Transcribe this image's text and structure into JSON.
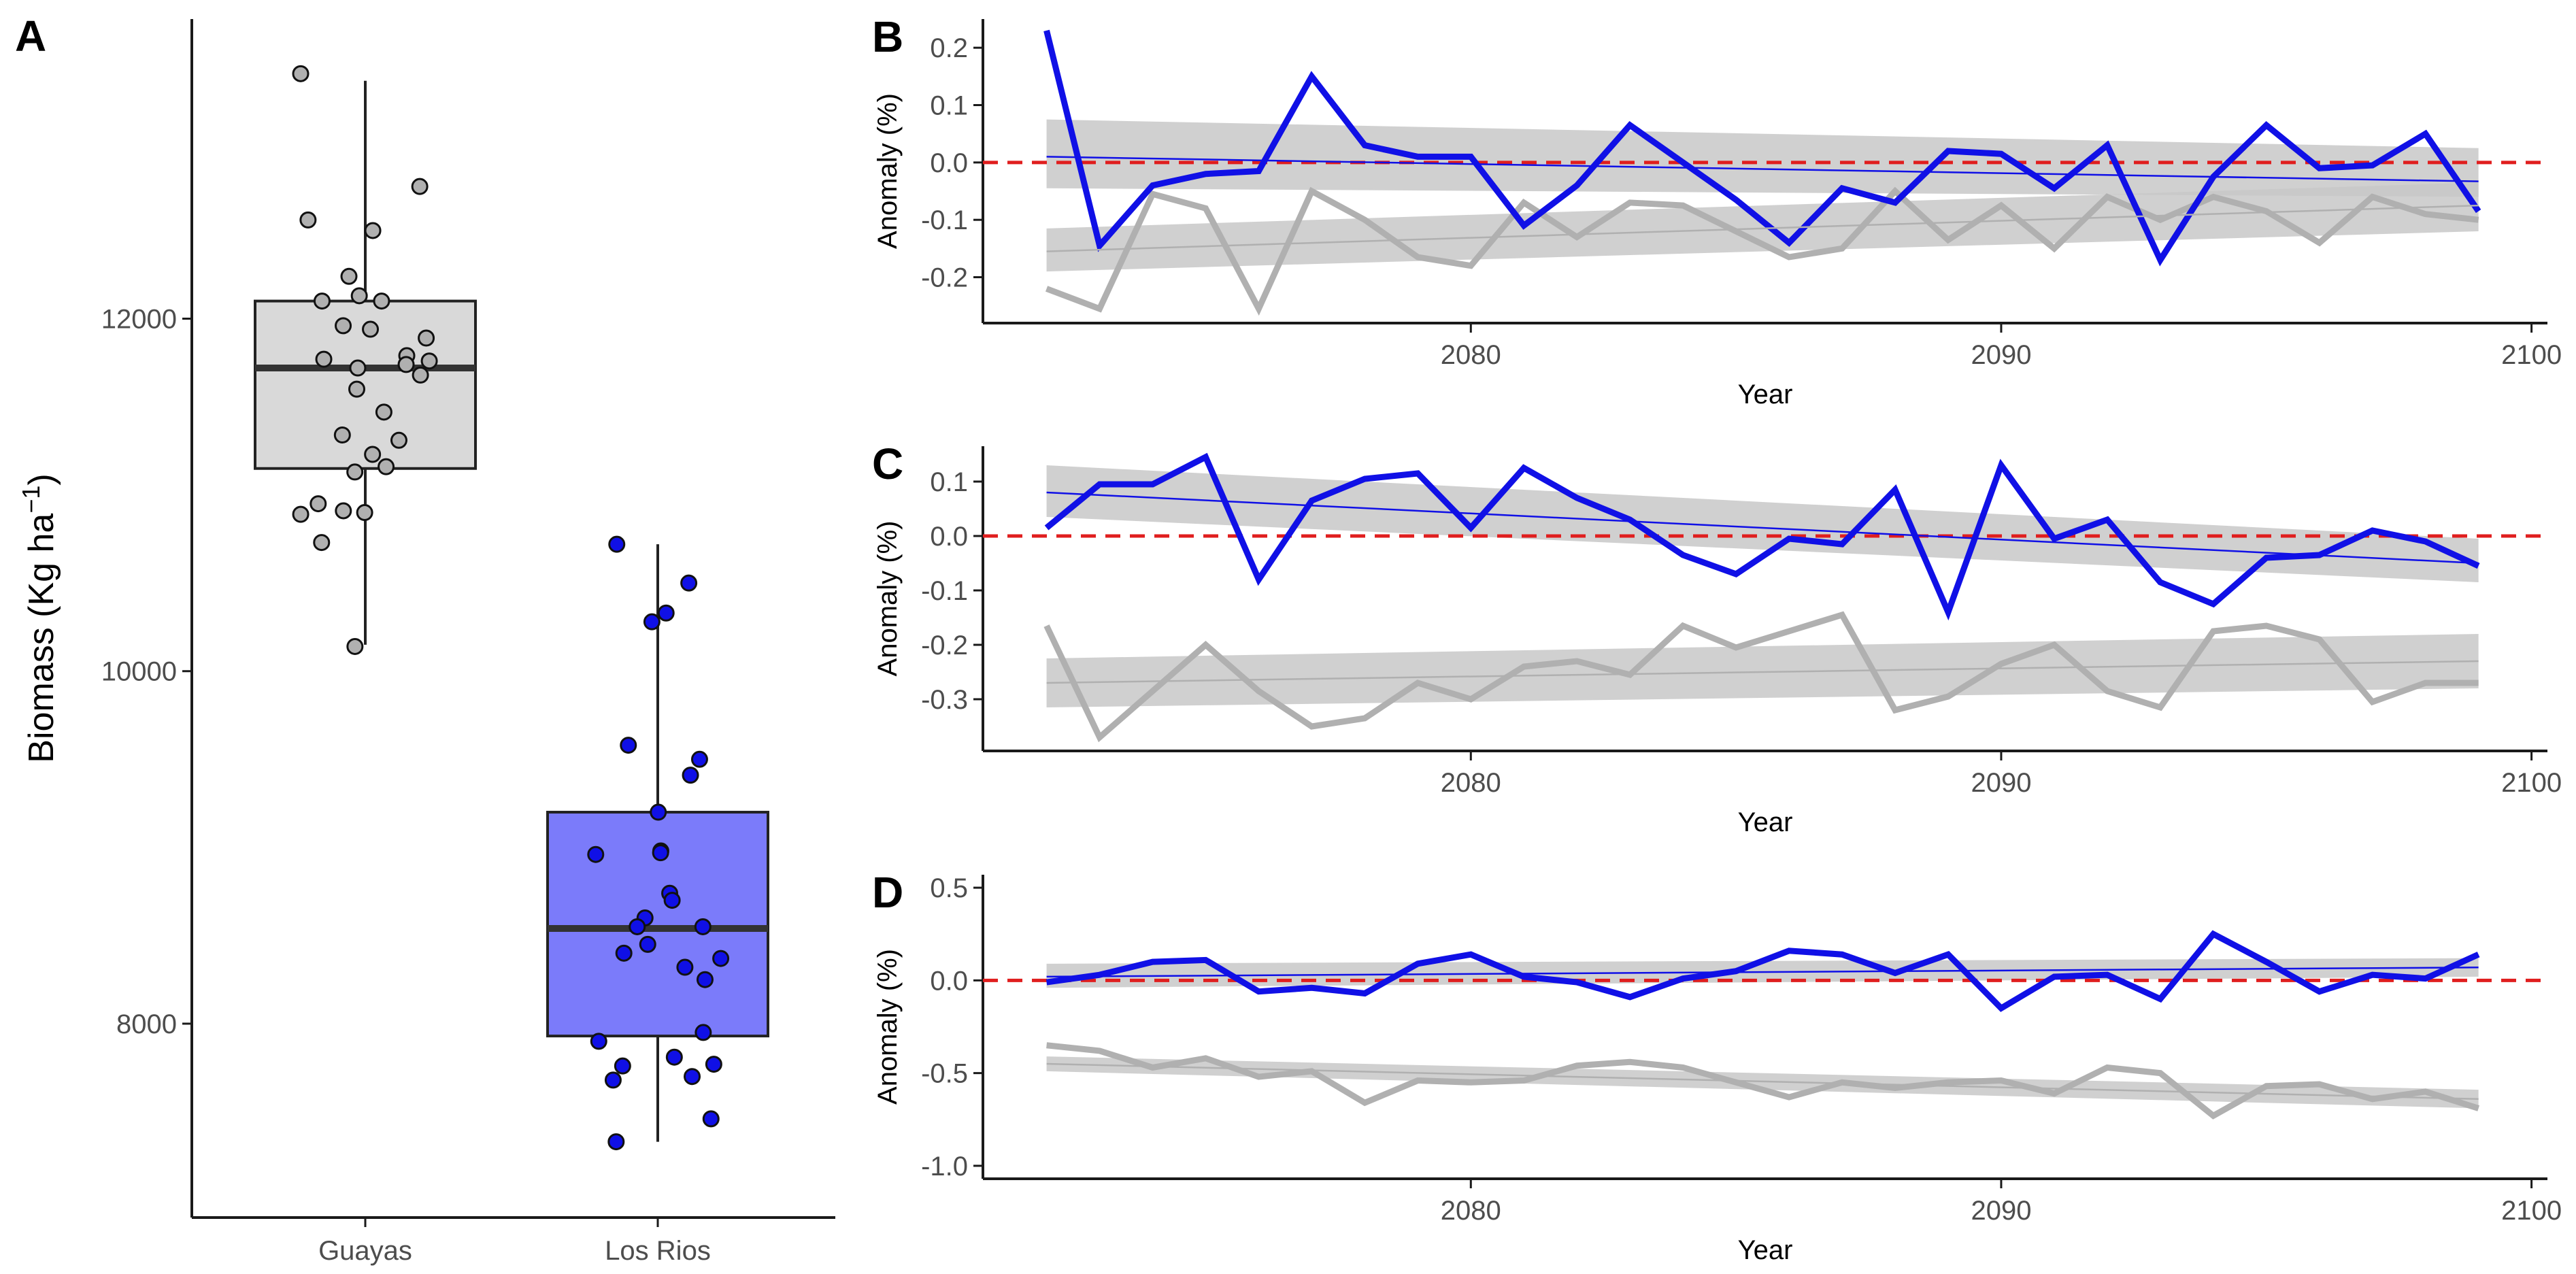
{
  "figure": {
    "background": "#ffffff"
  },
  "colors": {
    "guayas": "#b0b0b0",
    "guayas_box": "#d9d9d9",
    "losrios": "#1010e6",
    "losrios_box": "#7b7bfa",
    "band": "#c8c8c8",
    "zero_line": "#e01e1e",
    "axis": "#1a1a1a"
  },
  "chart_data": [
    {
      "panel": "A",
      "type": "box",
      "title": "",
      "xlabel": "",
      "ylabel": "Biomass (Kg ha⁻¹)",
      "ylim": [
        6900,
        13700
      ],
      "yticks": [
        8000,
        10000,
        12000
      ],
      "categories": [
        "Guayas",
        "Los Rios"
      ],
      "boxes": [
        {
          "name": "Guayas",
          "min": 10150,
          "q1": 11150,
          "median": 11720,
          "q3": 12100,
          "max": 13350
        },
        {
          "name": "Los Rios",
          "min": 7330,
          "q1": 7930,
          "median": 8540,
          "q3": 9200,
          "max": 10720
        }
      ],
      "points": [
        [
          13390,
          12750,
          12560,
          12500,
          12240,
          12130,
          12100,
          12100,
          11960,
          11940,
          11890,
          11790,
          11770,
          11760,
          11740,
          11720,
          11680,
          11600,
          11470,
          11340,
          11310,
          11230,
          11160,
          11130,
          10950,
          10910,
          10900,
          10890,
          10730,
          10140
        ],
        [
          10720,
          10500,
          10330,
          10280,
          9580,
          9500,
          9410,
          9200,
          8980,
          8970,
          8960,
          8740,
          8700,
          8600,
          8550,
          8550,
          8450,
          8400,
          8370,
          8320,
          8250,
          7950,
          7900,
          7810,
          7770,
          7760,
          7700,
          7680,
          7460,
          7330
        ]
      ]
    },
    {
      "panel": "B",
      "type": "line",
      "xlabel": "Year",
      "ylabel": "Anomaly (%)",
      "xlim": [
        2070.8,
        2100.3
      ],
      "ylim": [
        -0.28,
        0.25
      ],
      "xticks": [
        2080,
        2090,
        2100
      ],
      "yticks": [
        -0.2,
        -0.1,
        0.0,
        0.1,
        0.2
      ],
      "ytick_labels": [
        "-0.2",
        "-0.1",
        "0.0",
        "0.1",
        "0.2"
      ],
      "x": [
        2072,
        2073,
        2074,
        2075,
        2076,
        2077,
        2078,
        2079,
        2080,
        2081,
        2082,
        2083,
        2084,
        2085,
        2086,
        2087,
        2088,
        2089,
        2090,
        2091,
        2092,
        2093,
        2094,
        2095,
        2096,
        2097,
        2098,
        2099
      ],
      "series": [
        {
          "name": "Los Rios",
          "values": [
            0.23,
            -0.145,
            -0.04,
            -0.02,
            -0.015,
            0.15,
            0.03,
            0.01,
            0.01,
            -0.11,
            -0.04,
            0.065,
            0.0,
            -0.065,
            -0.14,
            -0.045,
            -0.07,
            0.02,
            0.015,
            -0.045,
            0.03,
            -0.17,
            -0.025,
            0.065,
            -0.01,
            -0.005,
            0.05,
            -0.085
          ],
          "trend": [
            0.01,
            -0.033
          ],
          "band": [
            [
              -0.045,
              0.075
            ],
            [
              -0.06,
              0.025
            ]
          ]
        },
        {
          "name": "Guayas",
          "values": [
            -0.22,
            -0.255,
            -0.055,
            -0.08,
            -0.255,
            -0.05,
            -0.1,
            -0.165,
            -0.18,
            -0.07,
            -0.13,
            -0.07,
            -0.075,
            -0.12,
            -0.165,
            -0.15,
            -0.05,
            -0.135,
            -0.075,
            -0.15,
            -0.06,
            -0.1,
            -0.06,
            -0.085,
            -0.14,
            -0.06,
            -0.09,
            -0.1
          ],
          "trend": [
            -0.155,
            -0.075
          ],
          "band": [
            [
              -0.19,
              -0.115
            ],
            [
              -0.12,
              -0.035
            ]
          ]
        }
      ],
      "hline": 0.0
    },
    {
      "panel": "C",
      "type": "line",
      "xlabel": "Year",
      "ylabel": "Anomaly (%)",
      "xlim": [
        2070.8,
        2100.3
      ],
      "ylim": [
        -0.395,
        0.165
      ],
      "xticks": [
        2080,
        2090,
        2100
      ],
      "yticks": [
        -0.3,
        -0.2,
        -0.1,
        0.0,
        0.1
      ],
      "ytick_labels": [
        "-0.3",
        "-0.2",
        "-0.1",
        "0.0",
        "0.1"
      ],
      "x": [
        2072,
        2073,
        2074,
        2075,
        2076,
        2077,
        2078,
        2079,
        2080,
        2081,
        2082,
        2083,
        2084,
        2085,
        2086,
        2087,
        2088,
        2089,
        2090,
        2091,
        2092,
        2093,
        2094,
        2095,
        2096,
        2097,
        2098,
        2099
      ],
      "series": [
        {
          "name": "Los Rios",
          "values": [
            0.015,
            0.095,
            0.095,
            0.145,
            -0.08,
            0.065,
            0.105,
            0.115,
            0.015,
            0.125,
            0.07,
            0.03,
            -0.035,
            -0.07,
            -0.005,
            -0.015,
            0.085,
            -0.14,
            0.13,
            -0.005,
            0.03,
            -0.085,
            -0.125,
            -0.04,
            -0.035,
            0.01,
            -0.01,
            -0.055
          ],
          "trend": [
            0.08,
            -0.05
          ],
          "band": [
            [
              0.035,
              0.13
            ],
            [
              -0.085,
              -0.005
            ]
          ]
        },
        {
          "name": "Guayas",
          "values": [
            -0.165,
            -0.37,
            -0.285,
            -0.2,
            -0.285,
            -0.35,
            -0.335,
            -0.27,
            -0.3,
            -0.24,
            -0.23,
            -0.255,
            -0.165,
            -0.205,
            -0.175,
            -0.145,
            -0.32,
            -0.295,
            -0.235,
            -0.2,
            -0.285,
            -0.315,
            -0.175,
            -0.165,
            -0.19,
            -0.305,
            -0.27,
            -0.27
          ],
          "trend": [
            -0.27,
            -0.23
          ],
          "band": [
            [
              -0.315,
              -0.225
            ],
            [
              -0.28,
              -0.18
            ]
          ]
        }
      ],
      "hline": 0.0
    },
    {
      "panel": "D",
      "type": "line",
      "xlabel": "Year",
      "ylabel": "Anomaly (%)",
      "xlim": [
        2070.8,
        2100.3
      ],
      "ylim": [
        -1.07,
        0.57
      ],
      "xticks": [
        2080,
        2090,
        2100
      ],
      "yticks": [
        -1.0,
        -0.5,
        0.0,
        0.5
      ],
      "ytick_labels": [
        "-1.0",
        "-0.5",
        "0.0",
        "0.5"
      ],
      "x": [
        2072,
        2073,
        2074,
        2075,
        2076,
        2077,
        2078,
        2079,
        2080,
        2081,
        2082,
        2083,
        2084,
        2085,
        2086,
        2087,
        2088,
        2089,
        2090,
        2091,
        2092,
        2093,
        2094,
        2095,
        2096,
        2097,
        2098,
        2099
      ],
      "series": [
        {
          "name": "Los Rios",
          "values": [
            -0.01,
            0.03,
            0.1,
            0.11,
            -0.06,
            -0.04,
            -0.07,
            0.09,
            0.14,
            0.02,
            -0.01,
            -0.09,
            0.01,
            0.05,
            0.16,
            0.14,
            0.04,
            0.14,
            -0.15,
            0.02,
            0.03,
            -0.1,
            0.25,
            0.1,
            -0.06,
            0.03,
            0.01,
            0.14
          ],
          "trend": [
            0.02,
            0.07
          ],
          "band": [
            [
              -0.04,
              0.09
            ],
            [
              0.02,
              0.12
            ]
          ]
        },
        {
          "name": "Guayas",
          "values": [
            -0.35,
            -0.38,
            -0.47,
            -0.42,
            -0.52,
            -0.49,
            -0.66,
            -0.54,
            -0.55,
            -0.54,
            -0.46,
            -0.44,
            -0.47,
            -0.55,
            -0.63,
            -0.55,
            -0.58,
            -0.55,
            -0.54,
            -0.61,
            -0.47,
            -0.5,
            -0.73,
            -0.57,
            -0.56,
            -0.64,
            -0.6,
            -0.69
          ],
          "trend": [
            -0.45,
            -0.64
          ],
          "band": [
            [
              -0.49,
              -0.41
            ],
            [
              -0.69,
              -0.59
            ]
          ]
        }
      ],
      "hline": 0.0
    }
  ]
}
